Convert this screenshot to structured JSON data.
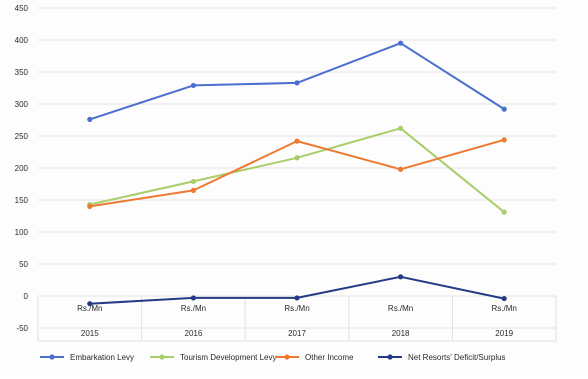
{
  "chart_data": {
    "type": "line",
    "categories": [
      "2015",
      "2016",
      "2017",
      "2018",
      "2019"
    ],
    "unit_label": "Rs./Mn",
    "ylim": [
      -50,
      450
    ],
    "yticks": [
      -50,
      0,
      50,
      100,
      150,
      200,
      250,
      300,
      350,
      400,
      450
    ],
    "grid": true,
    "legend_position": "bottom",
    "series": [
      {
        "name": "Embarkation Levy",
        "color": "#4a6fce",
        "values": [
          276,
          329,
          333,
          395,
          292
        ]
      },
      {
        "name": "Tourism Development Levy",
        "color": "#a9cd6a",
        "values": [
          143,
          179,
          216,
          262,
          131
        ]
      },
      {
        "name": "Other Income",
        "color": "#ee7a30",
        "values": [
          140,
          165,
          242,
          198,
          244
        ]
      },
      {
        "name": "Net Resorts' Deficit/Surplus",
        "color": "#243a86",
        "values": [
          -12,
          -3,
          -3,
          30,
          -4
        ]
      }
    ]
  }
}
